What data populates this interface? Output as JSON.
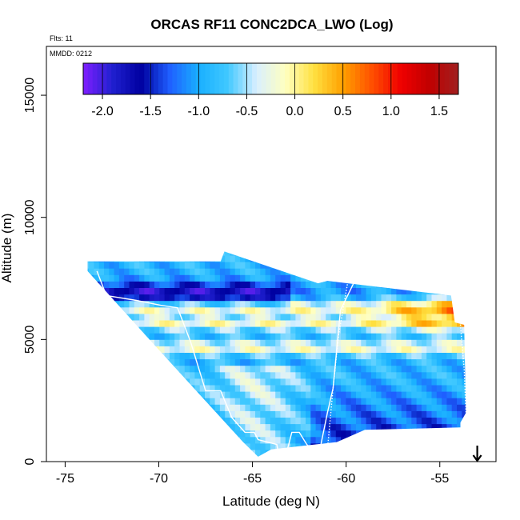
{
  "chart_data": {
    "type": "heatmap",
    "title": "ORCAS RF11 CONC2DCA_LWO (Log)",
    "annotations": [
      "Flts: 11",
      "MMDD: 0212"
    ],
    "xlabel": "Latitude (deg N)",
    "ylabel": "Altitude (m)",
    "xlim": [
      -76,
      -52
    ],
    "ylim": [
      0,
      17000
    ],
    "xticks": [
      -75,
      -70,
      -65,
      -60,
      -55
    ],
    "xtick_labels": [
      "-75",
      "-70",
      "-65",
      "-60",
      "-55"
    ],
    "yticks": [
      0,
      5000,
      10000,
      15000
    ],
    "ytick_labels": [
      "0",
      "5000",
      "10000",
      "15000"
    ],
    "colorbar": {
      "range": [
        -2.2,
        1.7
      ],
      "ticks": [
        -2.0,
        -1.5,
        -1.0,
        -0.5,
        0.0,
        0.5,
        1.0,
        1.5
      ],
      "tick_labels": [
        "-2.0",
        "-1.5",
        "-1.0",
        "-0.5",
        "0.0",
        "0.5",
        "1.0",
        "1.5"
      ],
      "colors": [
        "#7f1fff",
        "#2020d0",
        "#0000a0",
        "#1f5fff",
        "#19b0ff",
        "#40c8ff",
        "#d8efff",
        "#ffffc0",
        "#ffe040",
        "#ffa000",
        "#ff5000",
        "#f00000",
        "#c00000",
        "#a02020"
      ]
    },
    "domain_outline": {
      "lat": [
        -73.8,
        -73.8,
        -66.7,
        -66.5,
        -61.5,
        -61.0,
        -54.4,
        -54.2,
        -53.7,
        -53.6,
        -53.9,
        -53.9,
        -59.0,
        -60.5,
        -64.0,
        -64.7,
        -65.5,
        -70.5,
        -73.8
      ],
      "alt": [
        7800,
        8200,
        8200,
        8600,
        7300,
        7400,
        6800,
        5700,
        5600,
        2000,
        1600,
        1400,
        1300,
        800,
        500,
        200,
        800,
        5000,
        7800
      ]
    },
    "profiles": [
      {
        "style": "solid",
        "lat": [
          -73.3,
          -72.8,
          -71.2,
          -69.9,
          -69.0,
          -68.3,
          -67.5,
          -66.7,
          -66.1,
          -65.4,
          -64.9,
          -64.7,
          -64.2,
          -63.7,
          -63.6,
          -63.2,
          -62.9,
          -62.5,
          -62.1,
          -61.8,
          -61.4,
          -61.0,
          -60.7,
          -60.3,
          -59.6,
          -59.0
        ],
        "alt": [
          7800,
          6800,
          6600,
          6400,
          6300,
          4900,
          2900,
          2900,
          1800,
          1200,
          1200,
          900,
          800,
          700,
          300,
          300,
          1200,
          1200,
          700,
          500,
          500,
          2000,
          3000,
          6200,
          7300,
          7500
        ]
      },
      {
        "style": "dotted",
        "lat": [
          -61.0,
          -60.7,
          -60.4,
          -59.9
        ],
        "alt": [
          500,
          3000,
          5200,
          7400
        ]
      },
      {
        "style": "dotted",
        "lat": [
          -54.2,
          -53.9,
          -53.7,
          -53.6,
          -53.4
        ],
        "alt": [
          6500,
          5600,
          3800,
          2000,
          1500
        ]
      }
    ],
    "marker": {
      "symbol": "down-arrow",
      "lat": -53.0
    }
  }
}
